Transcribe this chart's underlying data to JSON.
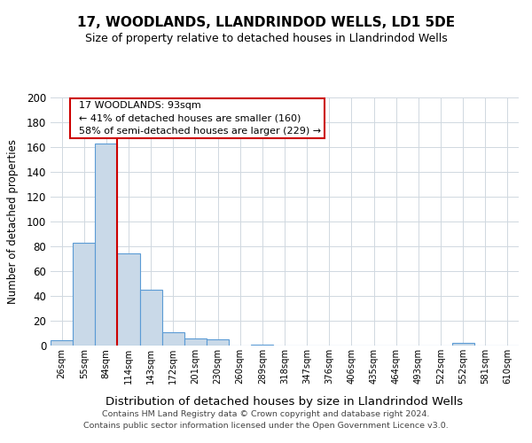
{
  "title": "17, WOODLANDS, LLANDRINDOD WELLS, LD1 5DE",
  "subtitle": "Size of property relative to detached houses in Llandrindod Wells",
  "xlabel": "Distribution of detached houses by size in Llandrindod Wells",
  "ylabel": "Number of detached properties",
  "footnote1": "Contains HM Land Registry data © Crown copyright and database right 2024.",
  "footnote2": "Contains public sector information licensed under the Open Government Licence v3.0.",
  "bin_labels": [
    "26sqm",
    "55sqm",
    "84sqm",
    "114sqm",
    "143sqm",
    "172sqm",
    "201sqm",
    "230sqm",
    "260sqm",
    "289sqm",
    "318sqm",
    "347sqm",
    "376sqm",
    "406sqm",
    "435sqm",
    "464sqm",
    "493sqm",
    "522sqm",
    "552sqm",
    "581sqm",
    "610sqm"
  ],
  "bar_values": [
    4,
    83,
    163,
    74,
    45,
    11,
    6,
    5,
    0,
    1,
    0,
    0,
    0,
    0,
    0,
    0,
    0,
    0,
    2,
    0,
    0
  ],
  "bar_color": "#c9d9e8",
  "bar_edge_color": "#5b9bd5",
  "vline_color": "#cc0000",
  "annotation_title": "17 WOODLANDS: 93sqm",
  "annotation_line1": "← 41% of detached houses are smaller (160)",
  "annotation_line2": "58% of semi-detached houses are larger (229) →",
  "ylim": [
    0,
    200
  ],
  "yticks": [
    0,
    20,
    40,
    60,
    80,
    100,
    120,
    140,
    160,
    180,
    200
  ],
  "background_color": "#ffffff",
  "grid_color": "#d0d8e0"
}
